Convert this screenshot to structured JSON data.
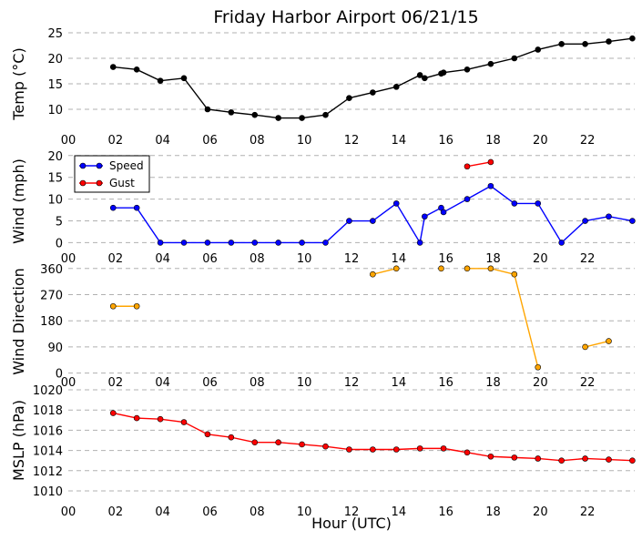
{
  "chart_data": {
    "title": "Friday Harbor Airport 06/21/15",
    "xlabel": "Hour (UTC)",
    "x_tick_labels": [
      "00",
      "02",
      "04",
      "06",
      "08",
      "10",
      "12",
      "14",
      "16",
      "18",
      "20",
      "22"
    ],
    "xlim": [
      0,
      24
    ],
    "panels": [
      {
        "id": "temp",
        "type": "line",
        "ylabel": "Temp ($^\\circ$C)",
        "ylabel_text": "Temp (°C)",
        "ylim": [
          5,
          25
        ],
        "yticks": [
          10,
          15,
          20,
          25
        ],
        "grid": "horizontal-dashed",
        "series": [
          {
            "color": "#000000",
            "points": [
              [
                1.9,
                18.3
              ],
              [
                2.9,
                17.8
              ],
              [
                3.9,
                15.6
              ],
              [
                4.9,
                16.1
              ],
              [
                5.9,
                10.0
              ],
              [
                6.9,
                9.4
              ],
              [
                7.9,
                8.9
              ],
              [
                8.9,
                8.3
              ],
              [
                9.9,
                8.3
              ],
              [
                10.9,
                8.9
              ],
              [
                11.9,
                12.2
              ],
              [
                12.9,
                13.3
              ],
              [
                13.9,
                14.4
              ],
              [
                14.9,
                16.7
              ],
              [
                15.1,
                16.1
              ],
              [
                15.8,
                17.0
              ],
              [
                15.9,
                17.2
              ],
              [
                16.9,
                17.8
              ],
              [
                17.9,
                18.9
              ],
              [
                18.9,
                20.0
              ],
              [
                19.9,
                21.7
              ],
              [
                20.9,
                22.8
              ],
              [
                21.9,
                22.8
              ],
              [
                22.9,
                23.3
              ],
              [
                23.9,
                23.9
              ]
            ]
          }
        ]
      },
      {
        "id": "wind",
        "type": "line",
        "ylabel": "Wind (mph)",
        "ylim": [
          -2,
          21
        ],
        "yticks": [
          0,
          5,
          10,
          15,
          20
        ],
        "grid": "horizontal-dashed",
        "legend": "top-left",
        "series": [
          {
            "name": "Speed",
            "color": "#0000ff",
            "points": [
              [
                1.9,
                8
              ],
              [
                2.9,
                8
              ],
              [
                3.9,
                0
              ],
              [
                4.9,
                0
              ],
              [
                5.9,
                0
              ],
              [
                6.9,
                0
              ],
              [
                7.9,
                0
              ],
              [
                8.9,
                0
              ],
              [
                9.9,
                0
              ],
              [
                10.9,
                0
              ],
              [
                11.9,
                5
              ],
              [
                12.9,
                5
              ],
              [
                13.9,
                9
              ],
              [
                14.9,
                0
              ],
              [
                15.1,
                6
              ],
              [
                15.8,
                8
              ],
              [
                15.9,
                7
              ],
              [
                16.9,
                10
              ],
              [
                17.9,
                13
              ],
              [
                18.9,
                9
              ],
              [
                19.9,
                9
              ],
              [
                20.9,
                0
              ],
              [
                21.9,
                5
              ],
              [
                22.9,
                6
              ],
              [
                23.9,
                5
              ]
            ]
          },
          {
            "name": "Gust",
            "color": "#ff0000",
            "points": [
              [
                16.9,
                17.5
              ],
              [
                17.9,
                18.5
              ]
            ]
          }
        ]
      },
      {
        "id": "direction",
        "type": "line",
        "ylabel": "Wind Direction",
        "ylim": [
          -20,
          375
        ],
        "yticks": [
          0,
          90,
          180,
          270,
          360
        ],
        "grid": "horizontal-dashed",
        "series": [
          {
            "color": "#ffa500",
            "segments": [
              [
                [
                  1.9,
                  230
                ],
                [
                  2.9,
                  230
                ]
              ],
              [
                [
                  12.9,
                  340
                ],
                [
                  13.9,
                  360
                ]
              ],
              [
                [
                  15.8,
                  360
                ]
              ],
              [
                [
                  16.9,
                  360
                ],
                [
                  17.9,
                  360
                ],
                [
                  18.9,
                  340
                ],
                [
                  19.9,
                  20
                ]
              ],
              [
                [
                  21.9,
                  90
                ],
                [
                  22.9,
                  110
                ]
              ]
            ]
          }
        ]
      },
      {
        "id": "mslp",
        "type": "line",
        "ylabel": "MSLP (hPa)",
        "ylim": [
          1010,
          1020
        ],
        "yticks": [
          1010,
          1012,
          1014,
          1016,
          1018,
          1020
        ],
        "grid": "horizontal-dashed",
        "series": [
          {
            "color": "#ff0000",
            "points": [
              [
                1.9,
                1017.7
              ],
              [
                2.9,
                1017.2
              ],
              [
                3.9,
                1017.1
              ],
              [
                4.9,
                1016.8
              ],
              [
                5.9,
                1015.6
              ],
              [
                6.9,
                1015.3
              ],
              [
                7.9,
                1014.8
              ],
              [
                8.9,
                1014.8
              ],
              [
                9.9,
                1014.6
              ],
              [
                10.9,
                1014.4
              ],
              [
                11.9,
                1014.1
              ],
              [
                12.9,
                1014.1
              ],
              [
                13.9,
                1014.1
              ],
              [
                14.9,
                1014.2
              ],
              [
                15.9,
                1014.2
              ],
              [
                16.9,
                1013.8
              ],
              [
                17.9,
                1013.4
              ],
              [
                18.9,
                1013.3
              ],
              [
                19.9,
                1013.2
              ],
              [
                20.9,
                1013.0
              ],
              [
                21.9,
                1013.2
              ],
              [
                22.9,
                1013.1
              ],
              [
                23.9,
                1013.0
              ]
            ]
          }
        ]
      }
    ]
  }
}
